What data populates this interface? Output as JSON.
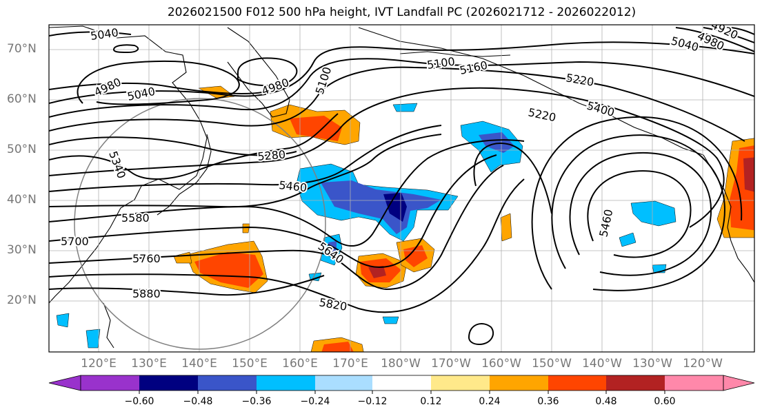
{
  "title": "2026021500 F012 500 hPa height, IVT Landfall PC (2026021712 - 2026022012)",
  "lat_labels": [
    "70°N",
    "60°N",
    "50°N",
    "40°N",
    "30°N",
    "20°N"
  ],
  "lon_labels": [
    "120°E",
    "130°E",
    "140°E",
    "150°E",
    "160°E",
    "170°E",
    "180°W",
    "170°W",
    "160°W",
    "150°W",
    "140°W",
    "130°W",
    "120°W"
  ],
  "contour_labels": [
    "5040",
    "4980",
    "5040",
    "4980",
    "5100",
    "5100",
    "5160",
    "5220",
    "5400",
    "5220",
    "5340",
    "5280",
    "5460",
    "5580",
    "5700",
    "5760",
    "5880",
    "5640",
    "5820",
    "5460",
    "5040",
    "4980",
    "4920"
  ],
  "colorbar": {
    "ticks": [
      "−0.60",
      "−0.48",
      "−0.36",
      "−0.24",
      "−0.12",
      "0.12",
      "0.24",
      "0.36",
      "0.48",
      "0.60"
    ],
    "colors": [
      "#9932cc",
      "#000080",
      "#3a55c9",
      "#00bfff",
      "#aadeff",
      "#ffffff",
      "#ffe98a",
      "#ffa500",
      "#ff4500",
      "#b22222",
      "#ff88aa"
    ]
  }
}
